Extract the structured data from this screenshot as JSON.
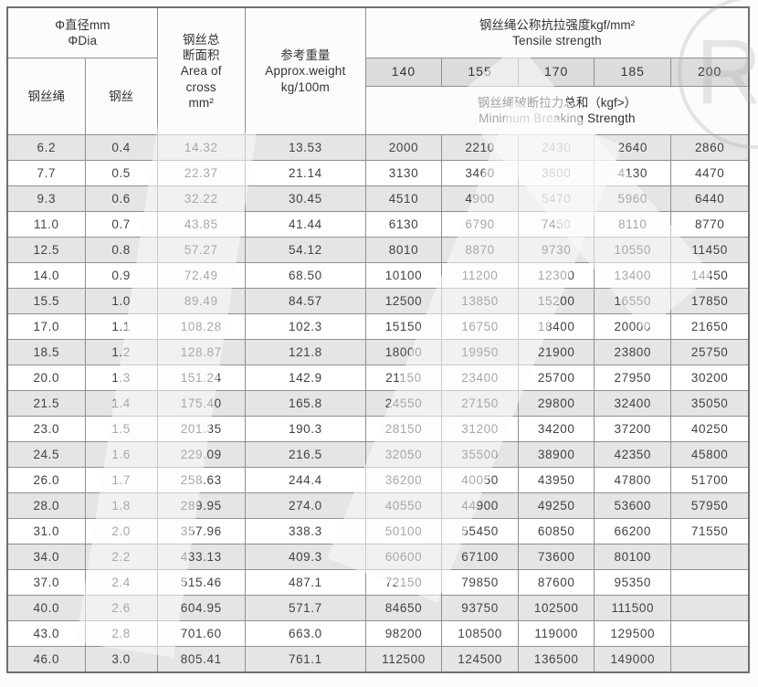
{
  "colors": {
    "shade_row": "#e5e5e7",
    "grade_band": "#dcdcde",
    "border": "#8f8f8f",
    "text": "#3c3c3c"
  },
  "watermark": {
    "letter": "R"
  },
  "table": {
    "header": {
      "dia_zh": "Φ直径mm",
      "dia_en": "ΦDia",
      "rope": "钢丝绳",
      "wire": "钢丝",
      "area_zh1": "钢丝总",
      "area_zh2": "断面积",
      "area_en1": "Area of",
      "area_en2": "cross",
      "area_unit": "mm²",
      "weight_zh": "参考重量",
      "weight_en": "Approx.weight",
      "weight_unit": "kg/100m",
      "tensile_zh": "钢丝绳公称抗拉强度kgf/mm²",
      "tensile_en": "Tensile strength",
      "grades": [
        "140",
        "155",
        "170",
        "185",
        "200"
      ],
      "breaking_zh": "钢丝绳破断拉力总和（kgf>）",
      "breaking_en": "Minimum Breaking Strength"
    },
    "rows": [
      [
        "6.2",
        "0.4",
        "14.32",
        "13.53",
        "2000",
        "2210",
        "2430",
        "2640",
        "2860"
      ],
      [
        "7.7",
        "0.5",
        "22.37",
        "21.14",
        "3130",
        "3460",
        "3800",
        "4130",
        "4470"
      ],
      [
        "9.3",
        "0.6",
        "32.22",
        "30.45",
        "4510",
        "4900",
        "5470",
        "5960",
        "6440"
      ],
      [
        "11.0",
        "0.7",
        "43.85",
        "41.44",
        "6130",
        "6790",
        "7450",
        "8110",
        "8770"
      ],
      [
        "12.5",
        "0.8",
        "57.27",
        "54.12",
        "8010",
        "8870",
        "9730",
        "10550",
        "11450"
      ],
      [
        "14.0",
        "0.9",
        "72.49",
        "68.50",
        "10100",
        "11200",
        "12300",
        "13400",
        "14450"
      ],
      [
        "15.5",
        "1.0",
        "89.49",
        "84.57",
        "12500",
        "13850",
        "15200",
        "16550",
        "17850"
      ],
      [
        "17.0",
        "1.1",
        "108.28",
        "102.3",
        "15150",
        "16750",
        "18400",
        "20000",
        "21650"
      ],
      [
        "18.5",
        "1.2",
        "128.87",
        "121.8",
        "18000",
        "19950",
        "21900",
        "23800",
        "25750"
      ],
      [
        "20.0",
        "1.3",
        "151.24",
        "142.9",
        "21150",
        "23400",
        "25700",
        "27950",
        "30200"
      ],
      [
        "21.5",
        "1.4",
        "175.40",
        "165.8",
        "24550",
        "27150",
        "29800",
        "32400",
        "35050"
      ],
      [
        "23.0",
        "1.5",
        "201.35",
        "190.3",
        "28150",
        "31200",
        "34200",
        "37200",
        "40250"
      ],
      [
        "24.5",
        "1.6",
        "229.09",
        "216.5",
        "32050",
        "35500",
        "38900",
        "42350",
        "45800"
      ],
      [
        "26.0",
        "1.7",
        "258.63",
        "244.4",
        "36200",
        "40050",
        "43950",
        "47800",
        "51700"
      ],
      [
        "28.0",
        "1.8",
        "289.95",
        "274.0",
        "40550",
        "44900",
        "49250",
        "53600",
        "57950"
      ],
      [
        "31.0",
        "2.0",
        "357.96",
        "338.3",
        "50100",
        "55450",
        "60850",
        "66200",
        "71550"
      ],
      [
        "34.0",
        "2.2",
        "433.13",
        "409.3",
        "60600",
        "67100",
        "73600",
        "80100",
        ""
      ],
      [
        "37.0",
        "2.4",
        "515.46",
        "487.1",
        "72150",
        "79850",
        "87600",
        "95350",
        ""
      ],
      [
        "40.0",
        "2.6",
        "604.95",
        "571.7",
        "84650",
        "93750",
        "102500",
        "111500",
        ""
      ],
      [
        "43.0",
        "2.8",
        "701.60",
        "663.0",
        "98200",
        "108500",
        "119000",
        "129500",
        ""
      ],
      [
        "46.0",
        "3.0",
        "805.41",
        "761.1",
        "112500",
        "124500",
        "136500",
        "149000",
        ""
      ]
    ]
  }
}
